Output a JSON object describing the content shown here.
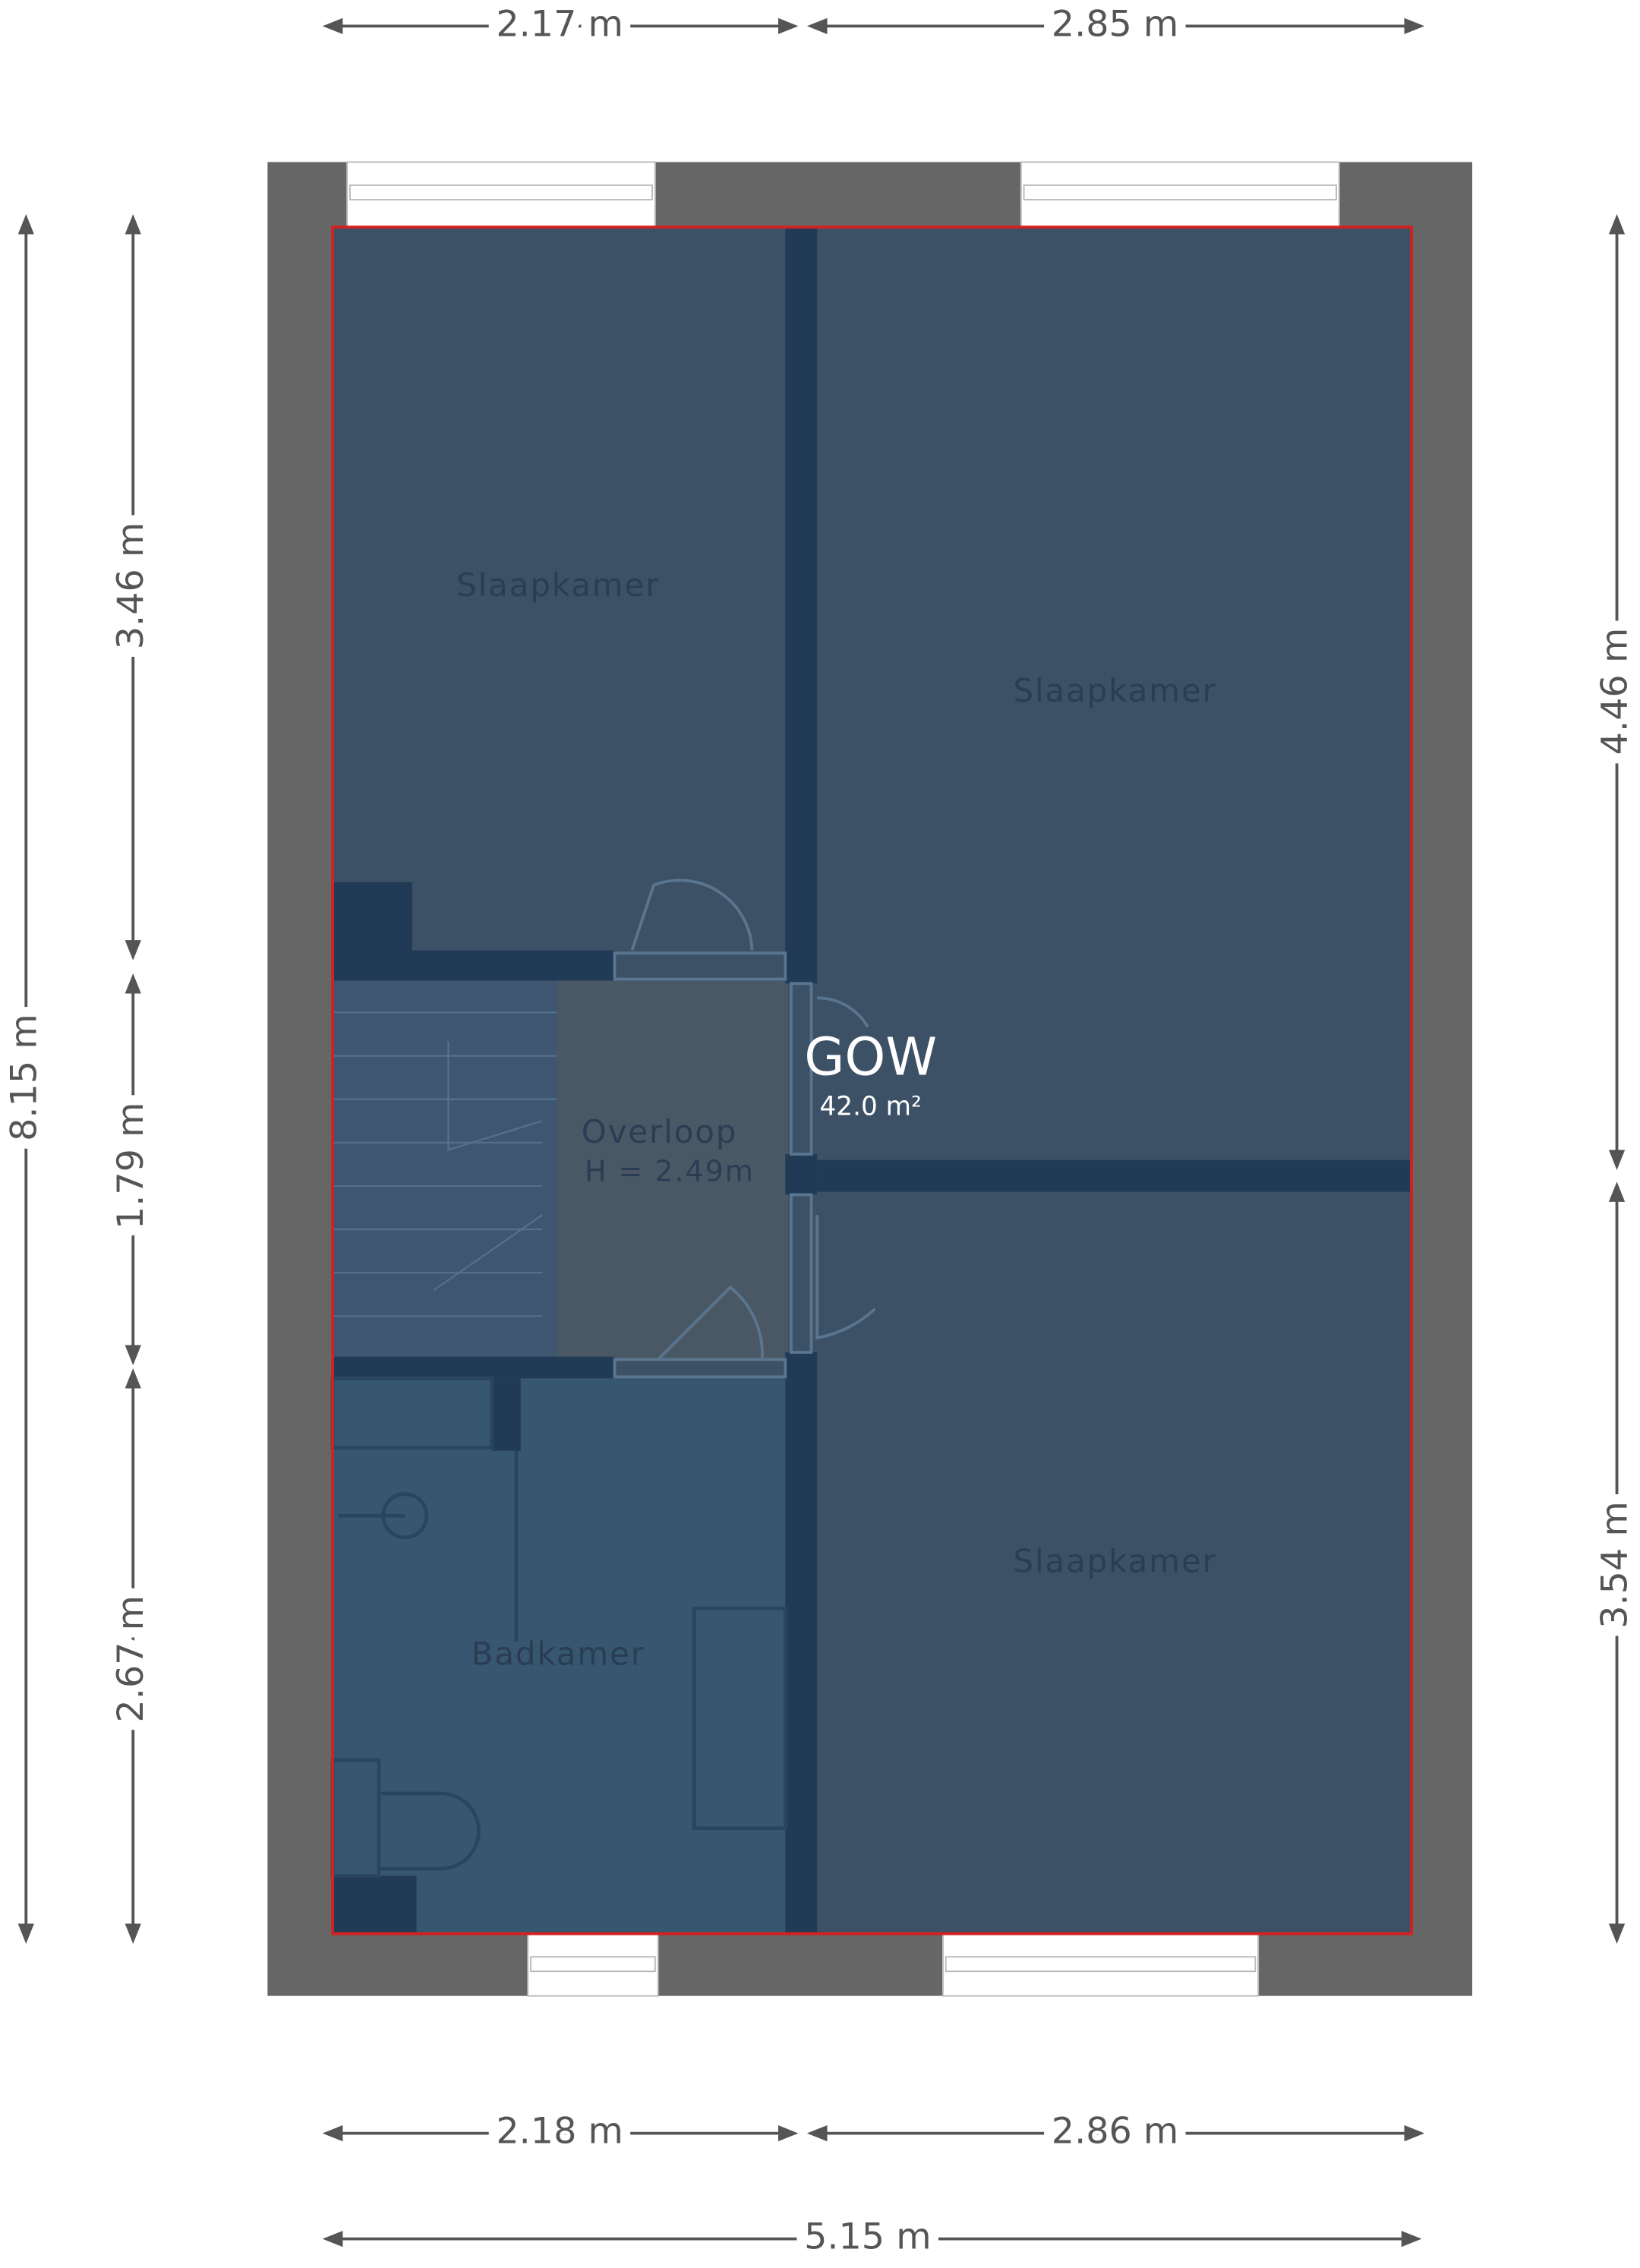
{
  "dimensions": {
    "top": [
      "2.17 m",
      "2.85 m"
    ],
    "bottom": [
      "2.18 m",
      "2.86 m"
    ],
    "total_width": "5.15 m",
    "total_height": "8.15 m",
    "left": [
      "3.46 m",
      "1.79 m",
      "2.67 m"
    ],
    "right": [
      "4.46 m",
      "3.54 m"
    ]
  },
  "rooms": [
    {
      "label": "Slaapkamer"
    },
    {
      "label": "Slaapkamer"
    },
    {
      "label": "Slaapkamer"
    },
    {
      "label": "Overloop",
      "height": "H = 2.49m"
    },
    {
      "label": "Badkamer"
    }
  ],
  "area": {
    "label": "GOW",
    "value": "42.0 m²"
  }
}
